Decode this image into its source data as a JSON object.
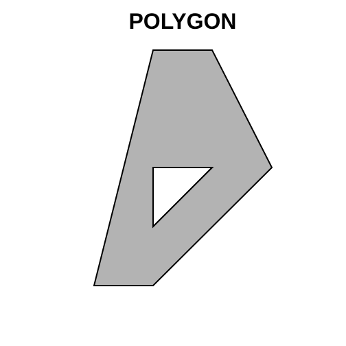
{
  "title": "POLYGON",
  "colors": {
    "background": "#ffffff",
    "fill": "#b3b3b3",
    "hole_fill": "#ffffff",
    "stroke": "#000000"
  }
}
